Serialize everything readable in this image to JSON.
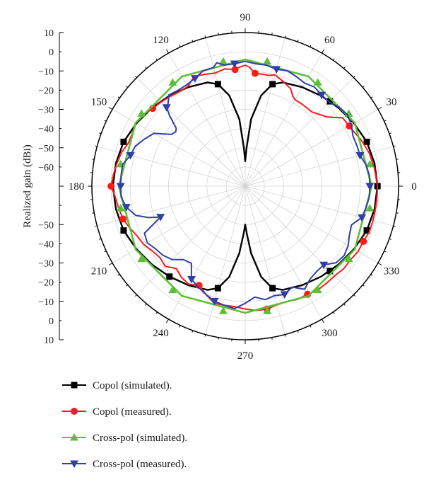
{
  "chart_data": {
    "type": "polar-line",
    "title": "",
    "ylabel": "Realized gain (dBi)",
    "r_range": [
      -70,
      10
    ],
    "r_ticks": [
      10,
      0,
      -10,
      -20,
      -30,
      -40,
      -50,
      -60
    ],
    "r_tick_labels_top": [
      "10",
      "0",
      "−10",
      "−20",
      "−30",
      "−40",
      "−50",
      "−60"
    ],
    "r_tick_labels_bottom": [
      "−50",
      "−40",
      "−30",
      "−20",
      "−10",
      "0",
      "10"
    ],
    "r_tick_values_bottom": [
      -50,
      -40,
      -30,
      -20,
      -10,
      0,
      10
    ],
    "angle_ticks": [
      0,
      30,
      60,
      90,
      120,
      150,
      180,
      210,
      240,
      270,
      300,
      330
    ],
    "angle_labels": [
      "0",
      "30",
      "60",
      "90",
      "120",
      "150",
      "180",
      "210",
      "240",
      "270",
      "300",
      "330"
    ],
    "grid": true,
    "legend_position": "bottom",
    "series": [
      {
        "name": "Copol (simulated).",
        "color": "#000000",
        "marker": "square",
        "marker_angles": [
          0,
          20,
          45,
          75,
          105,
          160,
          200,
          230,
          255,
          285,
          315,
          340
        ],
        "points": [
          [
            0,
            -1
          ],
          [
            10,
            -1.5
          ],
          [
            20,
            -2.5
          ],
          [
            30,
            -4.5
          ],
          [
            40,
            -6.5
          ],
          [
            50,
            -8.5
          ],
          [
            60,
            -10.5
          ],
          [
            70,
            -12.5
          ],
          [
            75,
            -15
          ],
          [
            80,
            -22
          ],
          [
            85,
            -35
          ],
          [
            88,
            -50
          ],
          [
            90,
            -57
          ],
          [
            92,
            -50
          ],
          [
            95,
            -35
          ],
          [
            100,
            -22
          ],
          [
            105,
            -15
          ],
          [
            110,
            -12.5
          ],
          [
            120,
            -10.5
          ],
          [
            130,
            -8.5
          ],
          [
            140,
            -6.5
          ],
          [
            150,
            -4.5
          ],
          [
            160,
            -2.5
          ],
          [
            170,
            -1.5
          ],
          [
            180,
            -1
          ],
          [
            190,
            -1.5
          ],
          [
            200,
            -2.5
          ],
          [
            210,
            -4.5
          ],
          [
            220,
            -6.5
          ],
          [
            230,
            -8.5
          ],
          [
            240,
            -10.5
          ],
          [
            250,
            -12.5
          ],
          [
            255,
            -15
          ],
          [
            260,
            -22
          ],
          [
            265,
            -35
          ],
          [
            268,
            -45
          ],
          [
            270,
            -50
          ],
          [
            272,
            -45
          ],
          [
            275,
            -35
          ],
          [
            280,
            -22
          ],
          [
            285,
            -15
          ],
          [
            290,
            -12.5
          ],
          [
            300,
            -10.5
          ],
          [
            310,
            -8.5
          ],
          [
            320,
            -6.5
          ],
          [
            330,
            -4.5
          ],
          [
            340,
            -2.5
          ],
          [
            350,
            -1.5
          ],
          [
            360,
            -1
          ]
        ]
      },
      {
        "name": "Copol (measured).",
        "color": "#ff1a1a",
        "marker": "circle",
        "marker_angles": [
          30,
          85,
          95,
          140,
          180,
          195,
          245,
          280,
          300,
          335
        ],
        "points": [
          [
            0,
            -1
          ],
          [
            8,
            -2
          ],
          [
            15,
            -3
          ],
          [
            22,
            -5
          ],
          [
            28,
            -7
          ],
          [
            35,
            -8
          ],
          [
            40,
            -14
          ],
          [
            48,
            -18
          ],
          [
            55,
            -18
          ],
          [
            60,
            -18
          ],
          [
            62,
            -17
          ],
          [
            65,
            -14
          ],
          [
            70,
            -12
          ],
          [
            75,
            -10
          ],
          [
            78,
            -11
          ],
          [
            82,
            -11
          ],
          [
            85,
            -11
          ],
          [
            88,
            -8
          ],
          [
            90,
            -7
          ],
          [
            93,
            -8
          ],
          [
            95,
            -9
          ],
          [
            100,
            -8
          ],
          [
            105,
            -9
          ],
          [
            110,
            -8
          ],
          [
            115,
            -7
          ],
          [
            120,
            -10
          ],
          [
            125,
            -10
          ],
          [
            130,
            -9
          ],
          [
            135,
            -8
          ],
          [
            140,
            -7
          ],
          [
            145,
            -5
          ],
          [
            150,
            -4
          ],
          [
            155,
            -5
          ],
          [
            160,
            -5
          ],
          [
            165,
            -3
          ],
          [
            170,
            -2
          ],
          [
            175,
            -1
          ],
          [
            180,
            0
          ],
          [
            185,
            -2
          ],
          [
            190,
            -3
          ],
          [
            195,
            -4
          ],
          [
            200,
            -6
          ],
          [
            205,
            -8
          ],
          [
            210,
            -9
          ],
          [
            215,
            -11
          ],
          [
            220,
            -12
          ],
          [
            225,
            -11
          ],
          [
            230,
            -14
          ],
          [
            235,
            -12
          ],
          [
            240,
            -11
          ],
          [
            245,
            -13
          ],
          [
            250,
            -10
          ],
          [
            255,
            -7
          ],
          [
            260,
            -7
          ],
          [
            265,
            -7
          ],
          [
            270,
            -6
          ],
          [
            275,
            -5
          ],
          [
            280,
            -5
          ],
          [
            285,
            -6
          ],
          [
            290,
            -6
          ],
          [
            295,
            -5
          ],
          [
            300,
            -5
          ],
          [
            305,
            -4
          ],
          [
            310,
            -4
          ],
          [
            315,
            -4
          ],
          [
            320,
            -3
          ],
          [
            325,
            -3
          ],
          [
            330,
            -2
          ],
          [
            335,
            -2
          ],
          [
            340,
            -1
          ],
          [
            345,
            -1
          ],
          [
            350,
            -1
          ],
          [
            355,
            -1
          ],
          [
            360,
            -1
          ]
        ]
      },
      {
        "name": "Cross-pol (simulated).",
        "color": "#5cbf3a",
        "marker": "triangle-up",
        "marker_angles": [
          10,
          35,
          55,
          80,
          100,
          125,
          145,
          170,
          190,
          215,
          235,
          260,
          280,
          305,
          325,
          350
        ],
        "points": [
          [
            0,
            -4
          ],
          [
            30,
            -4
          ],
          [
            60,
            -4
          ],
          [
            90,
            -4
          ],
          [
            120,
            -4
          ],
          [
            150,
            -4
          ],
          [
            180,
            -4
          ],
          [
            210,
            -4
          ],
          [
            240,
            -4
          ],
          [
            270,
            -4
          ],
          [
            300,
            -4
          ],
          [
            330,
            -4
          ],
          [
            360,
            -4
          ]
        ]
      },
      {
        "name": "Cross-pol (measured).",
        "color": "#2f3fa8",
        "marker": "triangle-down",
        "marker_angles": [
          0,
          15,
          50,
          75,
          95,
          115,
          135,
          165,
          180,
          190,
          200,
          240,
          255,
          290,
          315,
          345
        ],
        "points": [
          [
            0,
            -5
          ],
          [
            5,
            -5
          ],
          [
            10,
            -6
          ],
          [
            15,
            -8
          ],
          [
            20,
            -8
          ],
          [
            25,
            -8
          ],
          [
            30,
            -6
          ],
          [
            35,
            -5
          ],
          [
            40,
            -6
          ],
          [
            45,
            -8
          ],
          [
            50,
            -8
          ],
          [
            55,
            -7
          ],
          [
            60,
            -8
          ],
          [
            65,
            -7
          ],
          [
            70,
            -6
          ],
          [
            75,
            -7
          ],
          [
            80,
            -6
          ],
          [
            85,
            -6
          ],
          [
            90,
            -5
          ],
          [
            95,
            -6
          ],
          [
            100,
            -6
          ],
          [
            103,
            -4
          ],
          [
            105,
            -6
          ],
          [
            110,
            -6
          ],
          [
            115,
            -8
          ],
          [
            120,
            -9
          ],
          [
            125,
            -9
          ],
          [
            130,
            -8
          ],
          [
            133,
            -11
          ],
          [
            135,
            -12
          ],
          [
            137,
            -16
          ],
          [
            140,
            -23
          ],
          [
            142,
            -24
          ],
          [
            145,
            -23
          ],
          [
            150,
            -15
          ],
          [
            155,
            -12
          ],
          [
            160,
            -9
          ],
          [
            165,
            -8
          ],
          [
            170,
            -5
          ],
          [
            175,
            -5
          ],
          [
            180,
            -5
          ],
          [
            185,
            -5
          ],
          [
            190,
            -7
          ],
          [
            195,
            -11
          ],
          [
            198,
            -17
          ],
          [
            200,
            -23
          ],
          [
            205,
            -12
          ],
          [
            210,
            -11
          ],
          [
            215,
            -13
          ],
          [
            220,
            -14
          ],
          [
            225,
            -16
          ],
          [
            230,
            -20
          ],
          [
            235,
            -21
          ],
          [
            240,
            -14
          ],
          [
            245,
            -12
          ],
          [
            250,
            -10
          ],
          [
            255,
            -8
          ],
          [
            260,
            -7
          ],
          [
            265,
            -6
          ],
          [
            270,
            -9
          ],
          [
            275,
            -12
          ],
          [
            280,
            -10
          ],
          [
            285,
            -11
          ],
          [
            290,
            -10
          ],
          [
            295,
            -12
          ],
          [
            300,
            -8
          ],
          [
            305,
            -11
          ],
          [
            310,
            -12
          ],
          [
            315,
            -12
          ],
          [
            320,
            -8
          ],
          [
            325,
            -7
          ],
          [
            330,
            -8
          ],
          [
            335,
            -10
          ],
          [
            340,
            -11
          ],
          [
            345,
            -7
          ],
          [
            350,
            -6
          ],
          [
            355,
            -5
          ],
          [
            360,
            -5
          ]
        ]
      }
    ]
  }
}
